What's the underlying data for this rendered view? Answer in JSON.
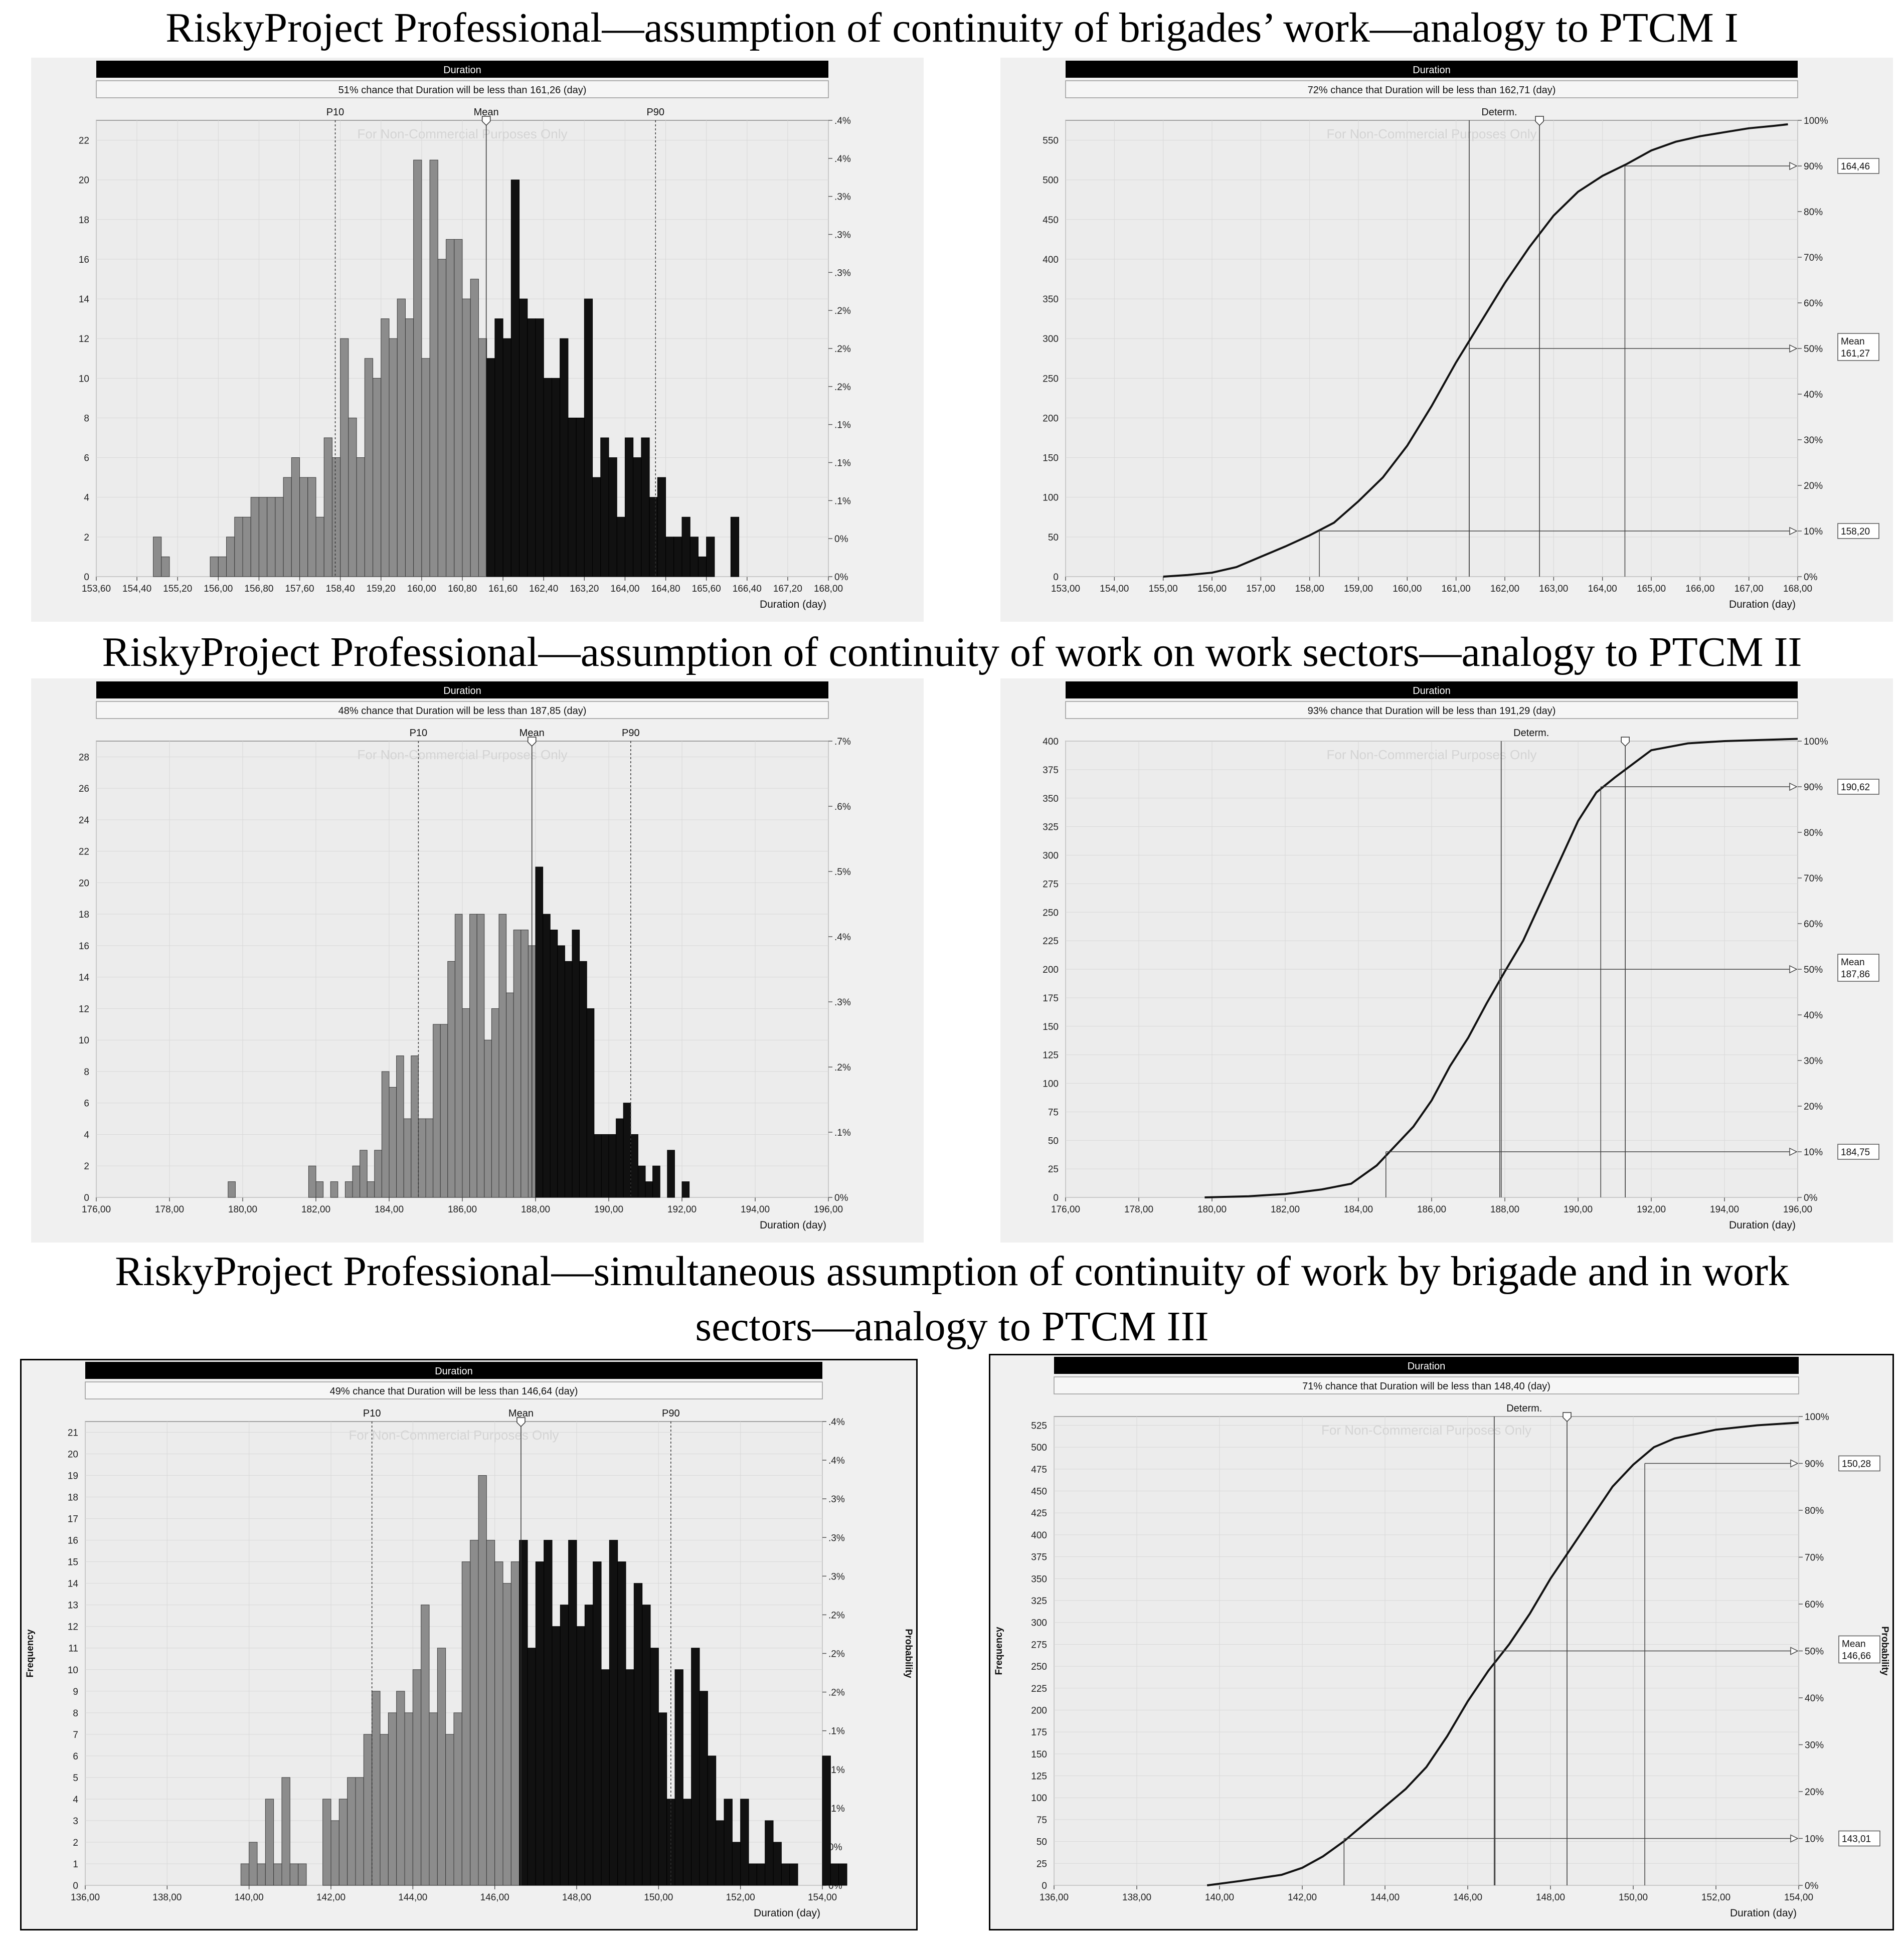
{
  "titles": {
    "section1": "RiskyProject Professional—assumption of continuity of brigades’ work—analogy to PTCM I",
    "section2": "RiskyProject Professional—assumption of continuity of work on work sectors—analogy to PTCM II",
    "section3_line1": "RiskyProject Professional—simultaneous assumption of continuity of work by brigade and in work",
    "section3_line2": "sectors—analogy to PTCM III"
  },
  "colors": {
    "header_bar": "#000000",
    "plot_bg": "#ececec",
    "panel_bg": "#f0f0f0",
    "bar_light": "#8c8c8c",
    "bar_dark": "#111111"
  },
  "chart_data": [
    {
      "type": "bar",
      "header": "Duration",
      "subtitle": "51% chance that Duration will be less than 161,26 (day)",
      "watermark": "For Non-Commercial Purposes Only",
      "xlabel": "Duration (day)",
      "ylabel": "",
      "ylabel_right": "",
      "xlim": [
        153.6,
        168.0
      ],
      "xticks": [
        "153,60",
        "154,40",
        "155,20",
        "156,00",
        "156,80",
        "157,60",
        "158,40",
        "159,20",
        "160,00",
        "160,80",
        "161,60",
        "162,40",
        "163,20",
        "164,00",
        "164,80",
        "165,60",
        "166,40",
        "167,20",
        "168,00"
      ],
      "ylim": [
        0,
        23
      ],
      "yticks": [
        "0",
        "2",
        "4",
        "6",
        "8",
        "10",
        "12",
        "14",
        "16",
        "18",
        "20",
        "22"
      ],
      "right_ticks": [
        "0%",
        "0%",
        ".1%",
        ".1%",
        ".1%",
        ".2%",
        ".2%",
        ".2%",
        ".3%",
        ".3%",
        ".3%",
        ".4%",
        ".4%"
      ],
      "markers": [
        {
          "label": "P10",
          "x": 158.3
        },
        {
          "label": "Mean",
          "x": 161.27
        },
        {
          "label": "P90",
          "x": 164.6
        }
      ],
      "split_at": 161.27,
      "bin_start": 153.6,
      "bin_width": 0.16,
      "values": [
        0,
        0,
        0,
        0,
        0,
        0,
        0,
        2,
        1,
        0,
        0,
        0,
        0,
        0,
        1,
        1,
        2,
        3,
        3,
        4,
        4,
        4,
        4,
        5,
        6,
        5,
        5,
        3,
        7,
        6,
        12,
        8,
        6,
        11,
        10,
        13,
        12,
        14,
        13,
        21,
        11,
        21,
        16,
        17,
        17,
        14,
        15,
        12,
        11,
        13,
        12,
        20,
        14,
        13,
        13,
        10,
        10,
        12,
        8,
        8,
        14,
        5,
        7,
        6,
        3,
        7,
        6,
        7,
        4,
        5,
        2,
        2,
        3,
        2,
        1,
        2,
        0,
        0,
        3,
        0,
        0
      ],
      "series": [
        {
          "name": "",
          "values": []
        }
      ]
    },
    {
      "type": "line",
      "header": "Duration",
      "subtitle": "72% chance that Duration will be less than 162,71 (day)",
      "watermark": "For Non-Commercial Purposes Only",
      "xlabel": "Duration (day)",
      "ylabel": "",
      "ylabel_right": "",
      "xlim": [
        153.0,
        168.0
      ],
      "xticks": [
        "153,00",
        "154,00",
        "155,00",
        "156,00",
        "157,00",
        "158,00",
        "159,00",
        "160,00",
        "161,00",
        "162,00",
        "163,00",
        "164,00",
        "165,00",
        "166,00",
        "167,00",
        "168,00"
      ],
      "ylim": [
        0,
        575
      ],
      "yticks": [
        "0",
        "50",
        "100",
        "150",
        "200",
        "250",
        "300",
        "350",
        "400",
        "450",
        "500",
        "550"
      ],
      "right_ticks": [
        "0%",
        "10%",
        "20%",
        "30%",
        "40%",
        "50%",
        "60%",
        "70%",
        "80%",
        "90%",
        "100%"
      ],
      "determ_label": "Determ.",
      "determ_x": 161.27,
      "slider_x": 162.71,
      "x": [
        155.0,
        155.5,
        156.0,
        156.5,
        157.0,
        157.5,
        158.0,
        158.5,
        159.0,
        159.5,
        160.0,
        160.5,
        161.0,
        161.5,
        162.0,
        162.5,
        163.0,
        163.5,
        164.0,
        164.5,
        165.0,
        165.5,
        166.0,
        166.5,
        167.0,
        167.5,
        167.8
      ],
      "y": [
        0,
        2,
        5,
        12,
        25,
        38,
        52,
        68,
        95,
        125,
        165,
        215,
        270,
        320,
        370,
        415,
        455,
        485,
        505,
        520,
        537,
        548,
        555,
        560,
        565,
        568,
        570
      ],
      "callouts": [
        {
          "label": "164,46",
          "x": 164.46,
          "p": 0.9
        },
        {
          "label": "Mean",
          "value": "161,27",
          "x": 161.27,
          "p": 0.5
        },
        {
          "label": "158,20",
          "x": 158.2,
          "p": 0.1
        }
      ]
    },
    {
      "type": "bar",
      "header": "Duration",
      "subtitle": "48% chance that Duration will be less than 187,85 (day)",
      "watermark": "For Non-Commercial Purposes Only",
      "xlabel": "Duration (day)",
      "ylabel": "",
      "ylabel_right": "",
      "xlim": [
        176.0,
        196.0
      ],
      "xticks": [
        "176,00",
        "178,00",
        "180,00",
        "182,00",
        "184,00",
        "186,00",
        "188,00",
        "190,00",
        "192,00",
        "194,00",
        "196,00"
      ],
      "ylim": [
        0,
        29
      ],
      "yticks": [
        "0",
        "2",
        "4",
        "6",
        "8",
        "10",
        "12",
        "14",
        "16",
        "18",
        "20",
        "22",
        "24",
        "26",
        "28"
      ],
      "right_ticks": [
        "0%",
        ".1%",
        ".2%",
        ".3%",
        ".4%",
        ".5%",
        ".6%",
        ".7%"
      ],
      "markers": [
        {
          "label": "P10",
          "x": 184.8
        },
        {
          "label": "Mean",
          "x": 187.9
        },
        {
          "label": "P90",
          "x": 190.6
        }
      ],
      "split_at": 187.9,
      "bin_start": 176.0,
      "bin_width": 0.2,
      "values": [
        0,
        0,
        0,
        0,
        0,
        0,
        0,
        0,
        0,
        0,
        0,
        0,
        0,
        0,
        0,
        0,
        0,
        0,
        1,
        0,
        0,
        0,
        0,
        0,
        0,
        0,
        0,
        0,
        0,
        2,
        1,
        0,
        1,
        0,
        1,
        2,
        3,
        1,
        3,
        8,
        7,
        9,
        5,
        9,
        5,
        5,
        11,
        11,
        15,
        18,
        12,
        18,
        18,
        10,
        12,
        18,
        13,
        17,
        17,
        16,
        21,
        18,
        17,
        16,
        15,
        17,
        15,
        12,
        4,
        4,
        4,
        5,
        6,
        4,
        2,
        1,
        2,
        0,
        3,
        0,
        1,
        0,
        0,
        0,
        0
      ],
      "series": [
        {
          "name": "",
          "values": []
        }
      ]
    },
    {
      "type": "line",
      "header": "Duration",
      "subtitle": "93% chance that Duration will be less than 191,29 (day)",
      "watermark": "For Non-Commercial Purposes Only",
      "xlabel": "Duration (day)",
      "ylabel": "",
      "ylabel_right": "",
      "xlim": [
        176.0,
        196.0
      ],
      "xticks": [
        "176,00",
        "178,00",
        "180,00",
        "182,00",
        "184,00",
        "186,00",
        "188,00",
        "190,00",
        "192,00",
        "194,00",
        "196,00"
      ],
      "ylim": [
        0,
        400
      ],
      "yticks": [
        "0",
        "25",
        "50",
        "75",
        "100",
        "125",
        "150",
        "175",
        "200",
        "225",
        "250",
        "275",
        "300",
        "325",
        "350",
        "375",
        "400"
      ],
      "right_ticks": [
        "0%",
        "10%",
        "20%",
        "30%",
        "40%",
        "50%",
        "60%",
        "70%",
        "80%",
        "90%",
        "100%"
      ],
      "determ_label": "Determ.",
      "determ_x": 187.9,
      "slider_x": 191.29,
      "x": [
        179.8,
        181.0,
        182.0,
        183.0,
        183.8,
        184.5,
        185.0,
        185.5,
        186.0,
        186.5,
        187.0,
        187.5,
        188.0,
        188.5,
        189.0,
        189.5,
        190.0,
        190.5,
        191.0,
        191.5,
        192.0,
        193.0,
        194.0,
        195.0,
        196.0
      ],
      "y": [
        0,
        1,
        3,
        7,
        12,
        28,
        45,
        62,
        85,
        115,
        140,
        170,
        198,
        225,
        260,
        295,
        330,
        355,
        368,
        380,
        392,
        398,
        400,
        401,
        402
      ],
      "callouts": [
        {
          "label": "190,62",
          "x": 190.62,
          "p": 0.9
        },
        {
          "label": "Mean",
          "value": "187,86",
          "x": 187.86,
          "p": 0.5
        },
        {
          "label": "184,75",
          "x": 184.75,
          "p": 0.1
        }
      ]
    },
    {
      "type": "bar",
      "header": "Duration",
      "subtitle": "49% chance that Duration will be less than 146,64 (day)",
      "watermark": "For Non-Commercial Purposes Only",
      "xlabel": "Duration (day)",
      "ylabel": "Frequency",
      "ylabel_right": "Probability",
      "xlim": [
        136.0,
        154.0
      ],
      "xticks": [
        "136,00",
        "138,00",
        "140,00",
        "142,00",
        "144,00",
        "146,00",
        "148,00",
        "150,00",
        "152,00",
        "154,00"
      ],
      "ylim": [
        0,
        21.5
      ],
      "yticks": [
        "0",
        "1",
        "2",
        "3",
        "4",
        "5",
        "6",
        "7",
        "8",
        "9",
        "10",
        "11",
        "12",
        "13",
        "14",
        "15",
        "16",
        "17",
        "18",
        "19",
        "20",
        "21"
      ],
      "right_ticks": [
        "0%",
        "0%",
        ".1%",
        ".1%",
        ".1%",
        ".2%",
        ".2%",
        ".2%",
        ".3%",
        ".3%",
        ".3%",
        ".4%",
        ".4%"
      ],
      "markers": [
        {
          "label": "P10",
          "x": 143.0
        },
        {
          "label": "Mean",
          "x": 146.64
        },
        {
          "label": "P90",
          "x": 150.3
        }
      ],
      "split_at": 146.64,
      "bin_start": 136.0,
      "bin_width": 0.2,
      "values": [
        0,
        0,
        0,
        0,
        0,
        0,
        0,
        0,
        0,
        0,
        0,
        0,
        0,
        0,
        0,
        0,
        0,
        0,
        0,
        1,
        2,
        1,
        4,
        1,
        5,
        1,
        1,
        0,
        0,
        4,
        3,
        4,
        5,
        5,
        7,
        9,
        7,
        8,
        9,
        8,
        10,
        13,
        8,
        11,
        7,
        8,
        15,
        16,
        19,
        16,
        15,
        14,
        15,
        16,
        11,
        15,
        16,
        12,
        13,
        16,
        12,
        13,
        15,
        10,
        16,
        15,
        10,
        14,
        13,
        11,
        8,
        4,
        10,
        4,
        11,
        9,
        6,
        3,
        4,
        2,
        4,
        1,
        1,
        3,
        2,
        1,
        1,
        0,
        0,
        0,
        6,
        1,
        1,
        0
      ]
    },
    {
      "type": "line",
      "header": "Duration",
      "subtitle": "71% chance that Duration will be less than 148,40 (day)",
      "watermark": "For Non-Commercial Purposes Only",
      "xlabel": "Duration (day)",
      "ylabel": "Frequency",
      "ylabel_right": "Probability",
      "xlim": [
        136.0,
        154.0
      ],
      "xticks": [
        "136,00",
        "138,00",
        "140,00",
        "142,00",
        "144,00",
        "146,00",
        "148,00",
        "150,00",
        "152,00",
        "154,00"
      ],
      "ylim": [
        0,
        535
      ],
      "yticks": [
        "0",
        "25",
        "50",
        "75",
        "100",
        "125",
        "150",
        "175",
        "200",
        "225",
        "250",
        "275",
        "300",
        "325",
        "350",
        "375",
        "400",
        "425",
        "450",
        "475",
        "500",
        "525"
      ],
      "right_ticks": [
        "0%",
        "10%",
        "20%",
        "30%",
        "40%",
        "50%",
        "60%",
        "70%",
        "80%",
        "90%",
        "100%"
      ],
      "determ_label": "Determ.",
      "determ_x": 146.64,
      "slider_x": 148.4,
      "x": [
        139.7,
        140.5,
        141.5,
        142.0,
        142.5,
        143.0,
        143.5,
        144.0,
        144.5,
        145.0,
        145.5,
        146.0,
        146.5,
        147.0,
        147.5,
        148.0,
        148.5,
        149.0,
        149.5,
        150.0,
        150.5,
        151.0,
        151.5,
        152.0,
        153.0,
        154.0
      ],
      "y": [
        0,
        5,
        12,
        20,
        33,
        50,
        70,
        90,
        110,
        135,
        170,
        210,
        245,
        275,
        310,
        350,
        385,
        420,
        455,
        480,
        500,
        510,
        515,
        520,
        525,
        528
      ],
      "callouts": [
        {
          "label": "150,28",
          "x": 150.28,
          "p": 0.9
        },
        {
          "label": "Mean",
          "value": "146,66",
          "x": 146.66,
          "p": 0.5
        },
        {
          "label": "143,01",
          "x": 143.01,
          "p": 0.1
        }
      ]
    }
  ]
}
